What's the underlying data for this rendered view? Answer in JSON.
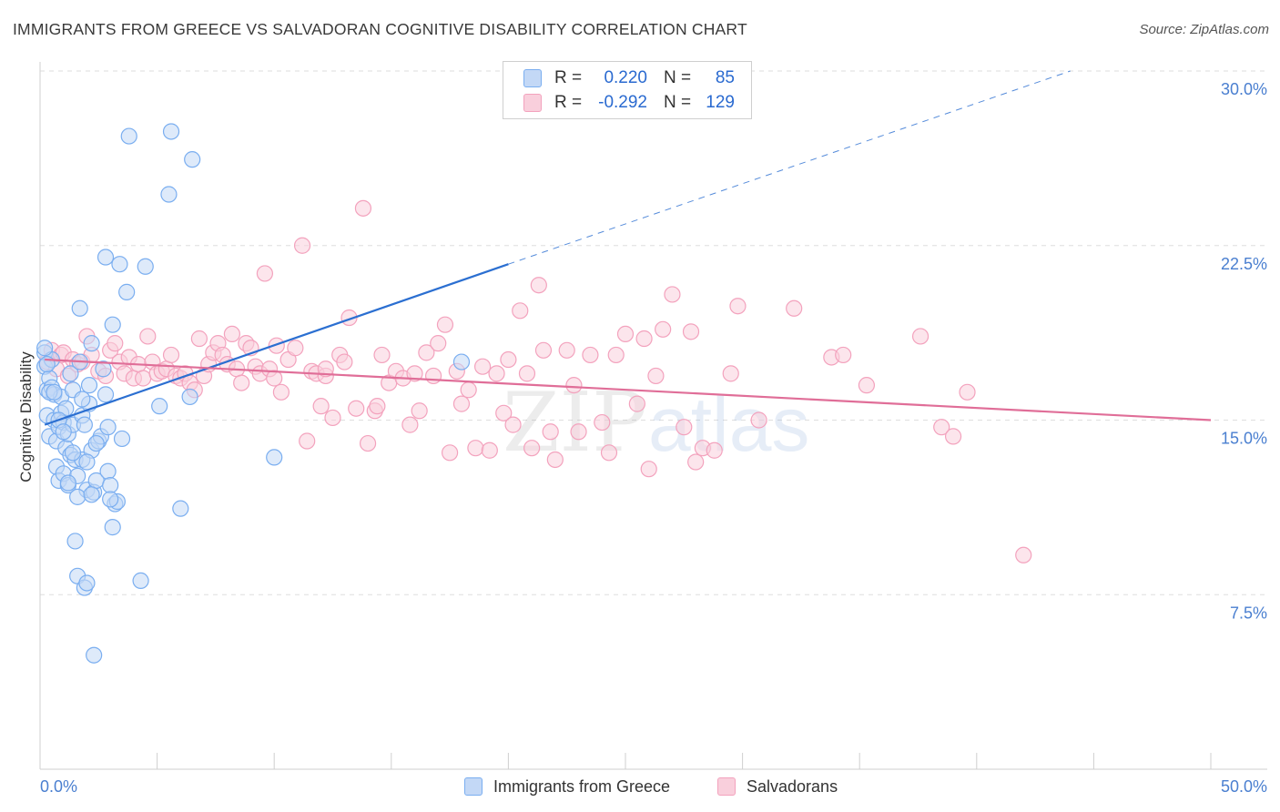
{
  "title": "IMMIGRANTS FROM GREECE VS SALVADORAN COGNITIVE DISABILITY CORRELATION CHART",
  "source": "Source: ZipAtlas.com",
  "watermark": {
    "zip": "ZIP",
    "atlas": "atlas"
  },
  "legend": {
    "r_label": "R =",
    "n_label": "N =",
    "series": [
      {
        "name": "Immigrants from Greece",
        "r": "0.220",
        "n": "85",
        "color": "#7aaef0",
        "fill": "#c3d8f6",
        "line": "#2b6fd1"
      },
      {
        "name": "Salvadorans",
        "r": "-0.292",
        "n": "129",
        "color": "#f3a2bd",
        "fill": "#f9cfdc",
        "line": "#e06e98"
      }
    ]
  },
  "chart_data": {
    "type": "scatter",
    "title": "IMMIGRANTS FROM GREECE VS SALVADORAN COGNITIVE DISABILITY CORRELATION CHART",
    "xlabel": "",
    "ylabel": "Cognitive Disability",
    "xlim": [
      0,
      50
    ],
    "ylim": [
      0,
      31
    ],
    "x_tick_labels": [
      "0.0%",
      "50.0%"
    ],
    "y_ticks": [
      7.5,
      15.0,
      22.5,
      30.0
    ],
    "y_tick_labels": [
      "7.5%",
      "15.0%",
      "22.5%",
      "30.0%"
    ],
    "grid": true,
    "series": [
      {
        "name": "Immigrants from Greece",
        "trend": {
          "x0": 0.2,
          "y0": 14.8,
          "x1": 20,
          "y1": 21.7,
          "dash_to_x": 44,
          "dash_to_y": 30.0
        },
        "points": [
          [
            0.2,
            17.9
          ],
          [
            0.2,
            17.3
          ],
          [
            0.3,
            16.3
          ],
          [
            0.3,
            15.2
          ],
          [
            0.4,
            14.3
          ],
          [
            0.4,
            16.8
          ],
          [
            0.5,
            16.4
          ],
          [
            0.5,
            17.6
          ],
          [
            0.6,
            16.1
          ],
          [
            0.6,
            15.0
          ],
          [
            0.7,
            14.1
          ],
          [
            0.7,
            13.0
          ],
          [
            0.8,
            12.4
          ],
          [
            0.8,
            14.7
          ],
          [
            0.9,
            15.3
          ],
          [
            0.9,
            16.0
          ],
          [
            1.0,
            14.9
          ],
          [
            1.0,
            12.7
          ],
          [
            1.1,
            13.8
          ],
          [
            1.1,
            15.5
          ],
          [
            1.2,
            14.4
          ],
          [
            1.2,
            12.2
          ],
          [
            1.3,
            13.5
          ],
          [
            1.3,
            17.0
          ],
          [
            1.4,
            14.8
          ],
          [
            1.4,
            16.3
          ],
          [
            1.5,
            9.8
          ],
          [
            1.5,
            13.3
          ],
          [
            1.6,
            12.6
          ],
          [
            1.6,
            8.3
          ],
          [
            1.7,
            19.8
          ],
          [
            1.7,
            17.5
          ],
          [
            1.8,
            15.2
          ],
          [
            1.8,
            13.3
          ],
          [
            1.9,
            7.8
          ],
          [
            1.9,
            14.8
          ],
          [
            2.0,
            12.0
          ],
          [
            2.0,
            8.0
          ],
          [
            2.1,
            15.7
          ],
          [
            2.1,
            16.5
          ],
          [
            2.2,
            13.7
          ],
          [
            2.2,
            18.3
          ],
          [
            2.3,
            11.9
          ],
          [
            2.3,
            4.9
          ],
          [
            2.4,
            12.4
          ],
          [
            2.5,
            14.1
          ],
          [
            2.6,
            14.3
          ],
          [
            2.7,
            17.2
          ],
          [
            2.8,
            16.1
          ],
          [
            2.8,
            22.0
          ],
          [
            2.9,
            12.8
          ],
          [
            2.9,
            14.7
          ],
          [
            3.0,
            12.2
          ],
          [
            3.1,
            19.1
          ],
          [
            3.1,
            10.4
          ],
          [
            3.2,
            11.4
          ],
          [
            3.3,
            11.5
          ],
          [
            3.4,
            21.7
          ],
          [
            3.5,
            14.2
          ],
          [
            3.7,
            20.5
          ],
          [
            3.8,
            27.2
          ],
          [
            4.3,
            8.1
          ],
          [
            4.5,
            21.6
          ],
          [
            5.1,
            15.6
          ],
          [
            5.5,
            24.7
          ],
          [
            5.6,
            27.4
          ],
          [
            6.0,
            11.2
          ],
          [
            6.4,
            16.0
          ],
          [
            6.5,
            26.2
          ],
          [
            10.0,
            13.4
          ],
          [
            0.2,
            18.1
          ],
          [
            0.3,
            17.4
          ],
          [
            0.4,
            16.2
          ],
          [
            0.6,
            16.2
          ],
          [
            0.8,
            15.0
          ],
          [
            1.0,
            14.5
          ],
          [
            1.2,
            12.3
          ],
          [
            1.4,
            13.6
          ],
          [
            1.6,
            11.7
          ],
          [
            1.8,
            15.9
          ],
          [
            2.0,
            13.2
          ],
          [
            2.2,
            11.8
          ],
          [
            2.4,
            14.0
          ],
          [
            3.0,
            11.6
          ],
          [
            18.0,
            17.5
          ]
        ]
      },
      {
        "name": "Salvadorans",
        "trend": {
          "x0": 0.2,
          "y0": 17.6,
          "x1": 50,
          "y1": 15.0
        },
        "points": [
          [
            0.3,
            17.5
          ],
          [
            0.5,
            18.0
          ],
          [
            0.7,
            17.2
          ],
          [
            0.9,
            17.8
          ],
          [
            1.0,
            17.9
          ],
          [
            1.2,
            16.9
          ],
          [
            1.4,
            17.6
          ],
          [
            1.6,
            17.4
          ],
          [
            1.8,
            17.5
          ],
          [
            2.0,
            18.6
          ],
          [
            2.2,
            17.8
          ],
          [
            2.5,
            17.1
          ],
          [
            2.8,
            16.9
          ],
          [
            3.0,
            18.0
          ],
          [
            3.2,
            18.3
          ],
          [
            3.4,
            17.5
          ],
          [
            3.6,
            17.0
          ],
          [
            3.8,
            17.7
          ],
          [
            4.0,
            16.8
          ],
          [
            4.2,
            17.4
          ],
          [
            4.4,
            16.8
          ],
          [
            4.6,
            18.6
          ],
          [
            4.8,
            17.5
          ],
          [
            5.0,
            17.0
          ],
          [
            5.2,
            17.1
          ],
          [
            5.4,
            17.2
          ],
          [
            5.6,
            17.8
          ],
          [
            5.8,
            16.9
          ],
          [
            6.0,
            16.8
          ],
          [
            6.2,
            17.0
          ],
          [
            6.4,
            16.6
          ],
          [
            6.6,
            16.3
          ],
          [
            6.8,
            18.5
          ],
          [
            7.0,
            16.9
          ],
          [
            7.2,
            17.4
          ],
          [
            7.4,
            17.9
          ],
          [
            7.6,
            18.3
          ],
          [
            7.8,
            17.8
          ],
          [
            8.0,
            17.4
          ],
          [
            8.2,
            18.7
          ],
          [
            8.4,
            17.2
          ],
          [
            8.6,
            16.6
          ],
          [
            8.8,
            18.3
          ],
          [
            9.0,
            18.1
          ],
          [
            9.2,
            17.3
          ],
          [
            9.4,
            17.0
          ],
          [
            9.6,
            21.3
          ],
          [
            9.8,
            17.2
          ],
          [
            10.0,
            16.8
          ],
          [
            10.3,
            16.2
          ],
          [
            10.6,
            17.6
          ],
          [
            10.9,
            18.1
          ],
          [
            11.2,
            22.5
          ],
          [
            11.4,
            14.1
          ],
          [
            11.6,
            17.1
          ],
          [
            11.8,
            17.0
          ],
          [
            12.0,
            15.6
          ],
          [
            12.2,
            16.9
          ],
          [
            12.5,
            15.1
          ],
          [
            12.8,
            17.8
          ],
          [
            13.0,
            17.5
          ],
          [
            13.2,
            19.4
          ],
          [
            13.5,
            15.5
          ],
          [
            13.8,
            24.1
          ],
          [
            14.0,
            14.0
          ],
          [
            14.3,
            15.4
          ],
          [
            14.6,
            17.8
          ],
          [
            14.9,
            16.6
          ],
          [
            15.2,
            17.1
          ],
          [
            15.5,
            16.8
          ],
          [
            15.8,
            14.8
          ],
          [
            16.2,
            15.4
          ],
          [
            16.5,
            17.9
          ],
          [
            16.8,
            16.9
          ],
          [
            17.0,
            18.3
          ],
          [
            17.3,
            19.1
          ],
          [
            17.5,
            13.6
          ],
          [
            17.8,
            17.1
          ],
          [
            18.0,
            15.7
          ],
          [
            18.3,
            16.3
          ],
          [
            18.6,
            13.8
          ],
          [
            18.9,
            17.3
          ],
          [
            19.2,
            13.7
          ],
          [
            19.5,
            17.0
          ],
          [
            19.8,
            15.3
          ],
          [
            20.0,
            17.6
          ],
          [
            20.2,
            14.8
          ],
          [
            20.5,
            19.7
          ],
          [
            20.8,
            17.0
          ],
          [
            21.0,
            13.8
          ],
          [
            21.3,
            20.8
          ],
          [
            21.5,
            18.0
          ],
          [
            21.8,
            14.5
          ],
          [
            22.0,
            13.3
          ],
          [
            22.5,
            18.0
          ],
          [
            22.8,
            16.5
          ],
          [
            23.0,
            14.5
          ],
          [
            23.5,
            17.8
          ],
          [
            24.0,
            14.9
          ],
          [
            24.3,
            13.6
          ],
          [
            24.6,
            17.8
          ],
          [
            25.0,
            18.7
          ],
          [
            25.5,
            15.7
          ],
          [
            25.8,
            18.5
          ],
          [
            26.0,
            12.9
          ],
          [
            26.3,
            16.9
          ],
          [
            26.6,
            18.9
          ],
          [
            27.0,
            20.4
          ],
          [
            27.5,
            14.7
          ],
          [
            27.8,
            18.8
          ],
          [
            28.0,
            13.2
          ],
          [
            28.3,
            13.8
          ],
          [
            28.8,
            13.7
          ],
          [
            29.5,
            17.0
          ],
          [
            29.8,
            19.9
          ],
          [
            30.7,
            15.0
          ],
          [
            32.2,
            19.8
          ],
          [
            33.8,
            17.7
          ],
          [
            34.3,
            17.8
          ],
          [
            35.3,
            16.5
          ],
          [
            37.6,
            18.6
          ],
          [
            38.5,
            14.7
          ],
          [
            39.0,
            14.3
          ],
          [
            39.6,
            16.2
          ],
          [
            42.0,
            9.2
          ],
          [
            16.0,
            17.0
          ],
          [
            10.1,
            18.2
          ],
          [
            12.2,
            17.2
          ],
          [
            14.4,
            15.6
          ]
        ]
      }
    ]
  },
  "bottom_legend": [
    "Immigrants from Greece",
    "Salvadorans"
  ]
}
